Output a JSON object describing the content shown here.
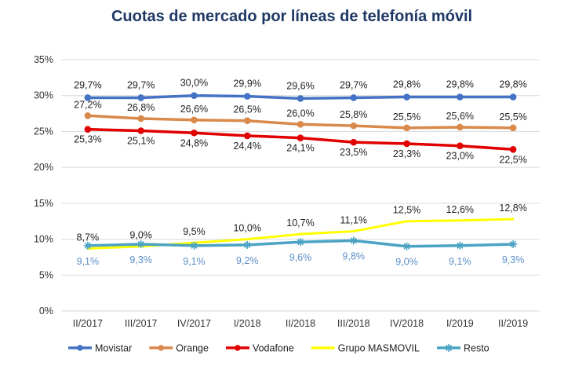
{
  "chart_data": {
    "type": "line",
    "title": "Cuotas de mercado por líneas de telefonía móvil",
    "xlabel": "",
    "ylabel": "",
    "ylim": [
      0,
      35
    ],
    "yticks": [
      "0%",
      "5%",
      "10%",
      "15%",
      "20%",
      "25%",
      "30%",
      "35%"
    ],
    "ytick_values": [
      0,
      5,
      10,
      15,
      20,
      25,
      30,
      35
    ],
    "grid": true,
    "legend_position": "bottom",
    "categories": [
      "II/2017",
      "III/2017",
      "IV/2017",
      "I/2018",
      "II/2018",
      "III/2018",
      "IV/2018",
      "I/2019",
      "II/2019"
    ],
    "series": [
      {
        "name": "Movistar",
        "color": "#4472c4",
        "marker": "circle",
        "label_position": "above",
        "values": [
          29.7,
          29.7,
          30.0,
          29.9,
          29.6,
          29.7,
          29.8,
          29.8,
          29.8
        ],
        "labels": [
          "29,7%",
          "29,7%",
          "30,0%",
          "29,9%",
          "29,6%",
          "29,7%",
          "29,8%",
          "29,8%",
          "29,8%"
        ]
      },
      {
        "name": "Orange",
        "color": "#d9894a",
        "marker": "circle",
        "label_position": "above",
        "values": [
          27.2,
          26.8,
          26.6,
          26.5,
          26.0,
          25.8,
          25.5,
          25.6,
          25.5
        ],
        "labels": [
          "27,2%",
          "26,8%",
          "26,6%",
          "26,5%",
          "26,0%",
          "25,8%",
          "25,5%",
          "25,6%",
          "25,5%"
        ]
      },
      {
        "name": "Vodafone",
        "color": "#e00000",
        "marker": "circle",
        "label_position": "below",
        "values": [
          25.3,
          25.1,
          24.8,
          24.4,
          24.1,
          23.5,
          23.3,
          23.0,
          22.5
        ],
        "labels": [
          "25,3%",
          "25,1%",
          "24,8%",
          "24,4%",
          "24,1%",
          "23,5%",
          "23,3%",
          "23,0%",
          "22,5%"
        ]
      },
      {
        "name": "Grupo MASMOVIL",
        "color": "#ffff00",
        "marker": "none",
        "label_position": "above",
        "values": [
          8.7,
          9.0,
          9.5,
          10.0,
          10.7,
          11.1,
          12.5,
          12.6,
          12.8
        ],
        "labels": [
          "8,7%",
          "9,0%",
          "9,5%",
          "10,0%",
          "10,7%",
          "11,1%",
          "12,5%",
          "12,6%",
          "12,8%"
        ]
      },
      {
        "name": "Resto",
        "color": "#4ba3c3",
        "marker": "star",
        "label_position": "below",
        "values": [
          9.1,
          9.3,
          9.1,
          9.2,
          9.6,
          9.8,
          9.0,
          9.1,
          9.3
        ],
        "labels": [
          "9,1%",
          "9,3%",
          "9,1%",
          "9,2%",
          "9,6%",
          "9,8%",
          "9,0%",
          "9,1%",
          "9,3%"
        ]
      }
    ]
  }
}
